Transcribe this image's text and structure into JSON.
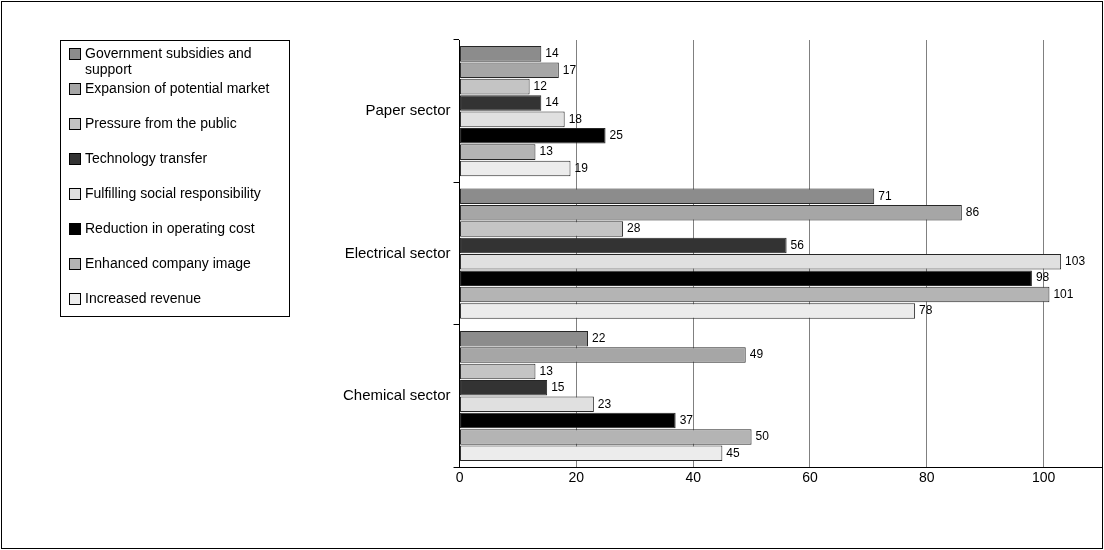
{
  "chart_data": {
    "type": "bar",
    "orientation": "horizontal",
    "categories": [
      "Paper sector",
      "Electrical sector",
      "Chemical sector"
    ],
    "series": [
      {
        "name": "Government subsidies and support",
        "color": "#8c8c8c",
        "values": [
          14,
          71,
          22
        ]
      },
      {
        "name": "Expansion of potential market",
        "color": "#a6a6a6",
        "values": [
          17,
          86,
          49
        ]
      },
      {
        "name": "Pressure from the public",
        "color": "#c4c4c4",
        "values": [
          12,
          28,
          13
        ]
      },
      {
        "name": "Technology transfer",
        "color": "#333333",
        "values": [
          14,
          56,
          15
        ]
      },
      {
        "name": "Fulfilling social responsibility",
        "color": "#e0e0e0",
        "values": [
          18,
          103,
          23
        ]
      },
      {
        "name": "Reduction in operating cost",
        "color": "#000000",
        "values": [
          25,
          98,
          37
        ]
      },
      {
        "name": "Enhanced company image",
        "color": "#b4b4b4",
        "values": [
          13,
          101,
          50
        ]
      },
      {
        "name": "Increased revenue",
        "color": "#ececec",
        "values": [
          19,
          78,
          45
        ]
      }
    ],
    "xlim": [
      0,
      110
    ],
    "xticks": [
      0,
      20,
      40,
      60,
      80,
      100
    ],
    "grid": "x",
    "legend": "left",
    "data_labels": true
  }
}
